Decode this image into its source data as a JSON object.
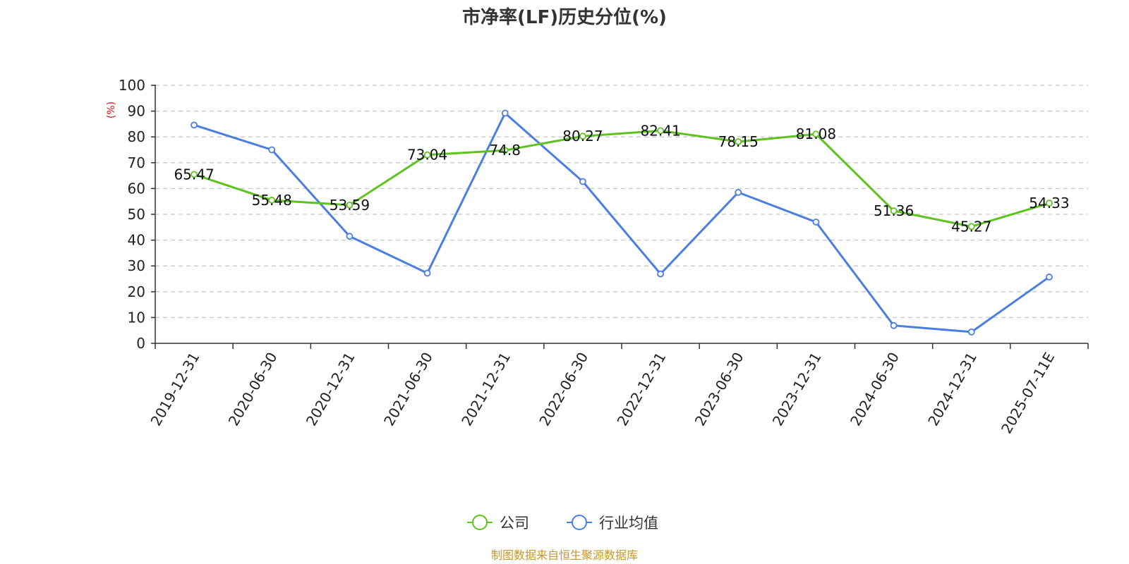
{
  "chart_data": {
    "type": "line",
    "title": "市净率(LF)历史分位(%)",
    "ylabel": "(%)",
    "ylim": [
      0,
      100
    ],
    "yticks": [
      0,
      10,
      20,
      30,
      40,
      50,
      60,
      70,
      80,
      90,
      100
    ],
    "categories": [
      "2019-12-31",
      "2020-06-30",
      "2020-12-31",
      "2021-06-30",
      "2021-12-31",
      "2022-06-30",
      "2022-12-31",
      "2023-06-30",
      "2023-12-31",
      "2024-06-30",
      "2024-12-31",
      "2025-07-11E"
    ],
    "series": [
      {
        "name": "公司",
        "color": "#5ec21f",
        "values": [
          65.47,
          55.48,
          53.59,
          73.04,
          74.8,
          80.27,
          82.41,
          78.15,
          81.08,
          51.36,
          45.27,
          54.33
        ],
        "labels": [
          "65.47",
          "55.48",
          "53.59",
          "73.04",
          "74.8",
          "80.27",
          "82.41",
          "78.15",
          "81.08",
          "51.36",
          "45.27",
          "54.33"
        ]
      },
      {
        "name": "行业均值",
        "color": "#4a7ee3",
        "values": [
          84.6,
          75.0,
          41.5,
          27.2,
          89.2,
          62.7,
          26.9,
          58.5,
          47.0,
          6.9,
          4.4,
          25.7
        ]
      }
    ],
    "grid": true,
    "legend_position": "bottom-center",
    "source": "制图数据来自恒生聚源数据库",
    "source_color": "#c8962a",
    "unit_color": "#e01010"
  }
}
